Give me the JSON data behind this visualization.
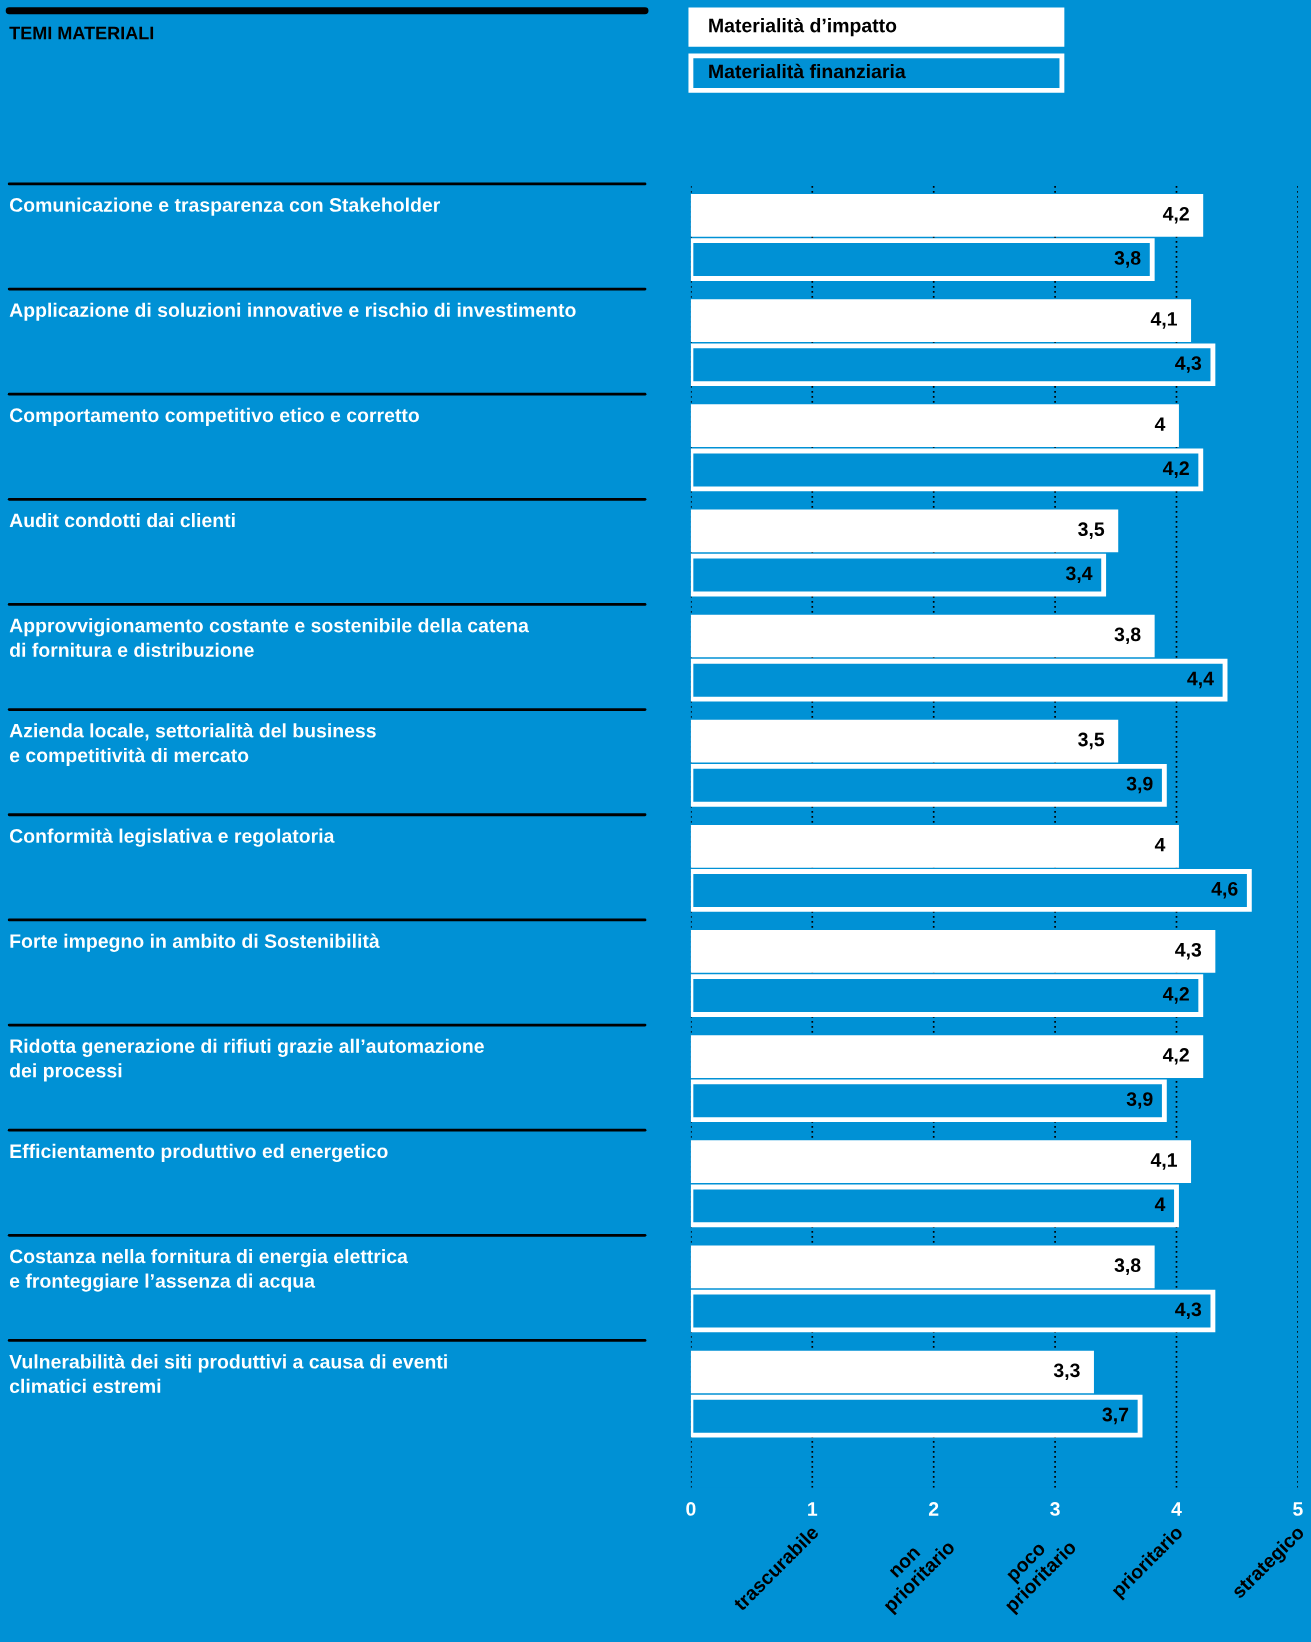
{
  "chart_data": {
    "type": "bar",
    "orientation": "horizontal",
    "title": "TEMI MATERIALI",
    "categories": [
      "Comunicazione e trasparenza con Stakeholder",
      "Applicazione di soluzioni innovative e rischio di investimento",
      "Comportamento competitivo etico e corretto",
      "Audit condotti dai clienti",
      "Approvvigionamento costante e sostenibile della catena\ndi fornitura e distribuzione",
      "Azienda locale, settorialità del business\ne competitività di mercato",
      "Conformità legislativa e regolatoria",
      "Forte impegno in ambito di Sostenibilità",
      "Ridotta generazione di rifiuti grazie all’automazione\ndei processi",
      "Efficientamento produttivo ed energetico",
      "Costanza nella fornitura di energia elettrica\ne fronteggiare l’assenza di acqua",
      "Vulnerabilità dei siti produttivi a causa di eventi\nclimatici estremi"
    ],
    "series": [
      {
        "name": "Materialità d’impatto",
        "color": "#ffffff",
        "values": [
          4.2,
          4.1,
          4,
          3.5,
          3.8,
          3.5,
          4,
          4.3,
          4.2,
          4.1,
          3.8,
          3.3
        ],
        "value_labels": [
          "4,2",
          "4,1",
          "4",
          "3,5",
          "3,8",
          "3,5",
          "4",
          "4,3",
          "4,2",
          "4,1",
          "3,8",
          "3,3"
        ]
      },
      {
        "name": "Materialità finanziaria",
        "color": "#0091d5",
        "values": [
          3.8,
          4.3,
          4.2,
          3.4,
          4.4,
          3.9,
          4.6,
          4.2,
          3.9,
          4,
          4.3,
          3.7
        ],
        "value_labels": [
          "3,8",
          "4,3",
          "4,2",
          "3,4",
          "4,4",
          "3,9",
          "4,6",
          "4,2",
          "3,9",
          "4",
          "4,3",
          "3,7"
        ]
      }
    ],
    "xlim": [
      0,
      5
    ],
    "xticks": [
      0,
      1,
      2,
      3,
      4,
      5
    ],
    "annotations": [
      "trascurabile",
      "non\nprioritario",
      "poco\nprioritario",
      "prioritario",
      "strategico"
    ],
    "grid": "x",
    "legend": "top left"
  }
}
